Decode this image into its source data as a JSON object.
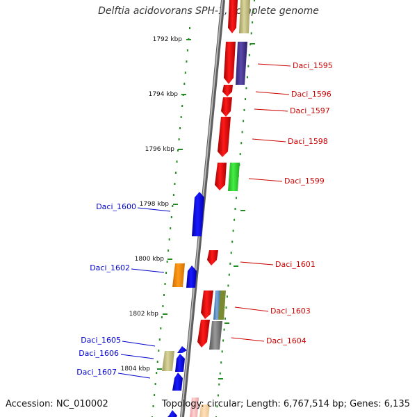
{
  "title": "Delftia acidovorans SPH-1, complete genome",
  "footer": {
    "accession": "Accession: NC_010002",
    "summary": "Topology: circular; Length: 6,767,514 bp; Genes: 6,135"
  },
  "ruler": [
    "1792 kbp",
    "1794 kbp",
    "1796 kbp",
    "1798 kbp",
    "1800 kbp",
    "1802 kbp",
    "1804 kbp"
  ],
  "genes_right": [
    "Daci_1595",
    "Daci_1596",
    "Daci_1597",
    "Daci_1598",
    "Daci_1599",
    "Daci_1601",
    "Daci_1603",
    "Daci_1604"
  ],
  "genes_left": [
    "Daci_1600",
    "Daci_1602",
    "Daci_1605",
    "Daci_1606",
    "Daci_1607"
  ],
  "colors": {
    "label_right": "#cc0000",
    "label_left": "#0000cc",
    "tick": "#228b22",
    "backbone": "#7a7a7a"
  }
}
